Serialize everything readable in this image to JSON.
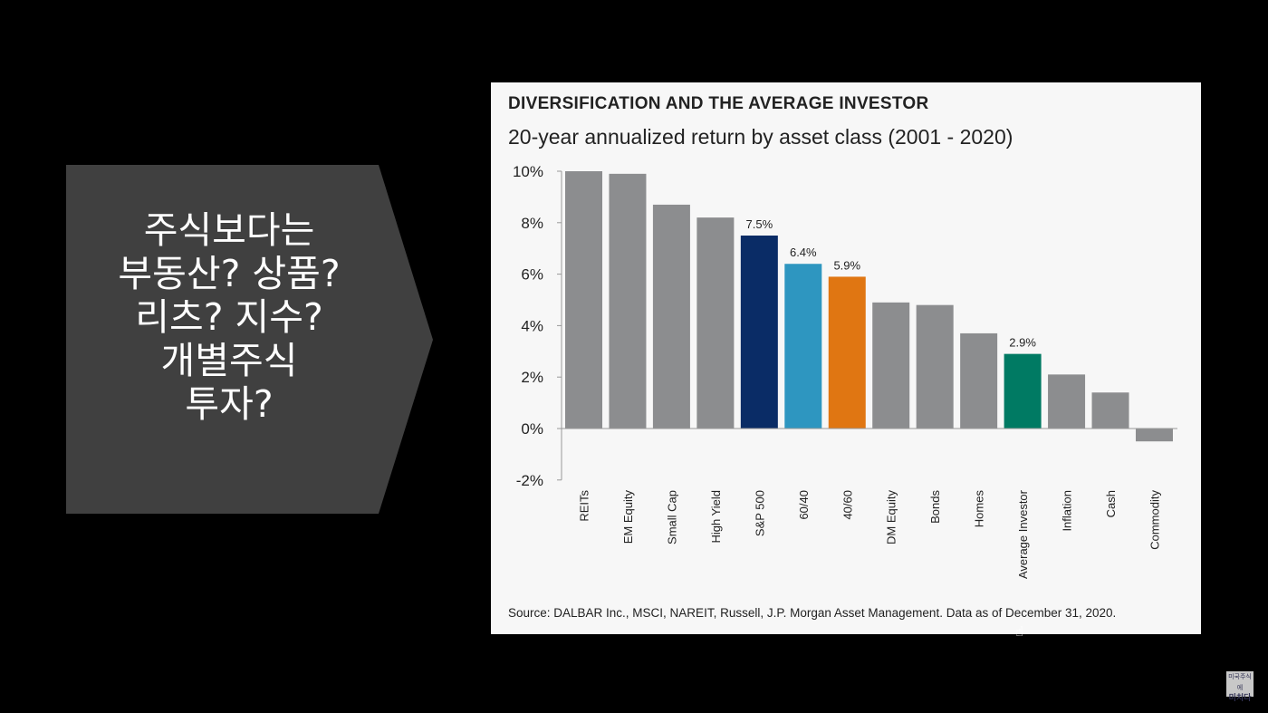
{
  "left_panel": {
    "lines": [
      "주식보다는",
      "부동산? 상품?",
      "리츠? 지수?",
      "개별주식",
      "투자?"
    ]
  },
  "logo": {
    "line1": "미국주식에",
    "line2": "미치다"
  },
  "chart_data": {
    "type": "bar",
    "title": "DIVERSIFICATION AND THE AVERAGE INVESTOR",
    "subtitle": "20-year annualized return by asset class (2001 - 2020)",
    "source": "Source: DALBAR Inc., MSCI, NAREIT, Russell, J.P. Morgan Asset Management. Data as of December 31, 2020.",
    "categories": [
      "REITs",
      "EM Equity",
      "Small Cap",
      "High Yield",
      "S&P 500",
      "60/40",
      "40/60",
      "DM Equity",
      "Bonds",
      "Homes",
      "Average Investor",
      "Inflation",
      "Cash",
      "Commodity"
    ],
    "values": [
      10.0,
      9.9,
      8.7,
      8.2,
      7.5,
      6.4,
      5.9,
      4.9,
      4.8,
      3.7,
      2.9,
      2.1,
      1.4,
      -0.5
    ],
    "colors": [
      "#8c8d8f",
      "#8c8d8f",
      "#8c8d8f",
      "#8c8d8f",
      "#0a2c66",
      "#2e96c0",
      "#e07612",
      "#8c8d8f",
      "#8c8d8f",
      "#8c8d8f",
      "#007a63",
      "#8c8d8f",
      "#8c8d8f",
      "#8c8d8f"
    ],
    "data_labels": {
      "4": "7.5%",
      "5": "6.4%",
      "6": "5.9%",
      "10": "2.9%"
    },
    "yticks": [
      10,
      8,
      6,
      4,
      2,
      0,
      -2
    ],
    "ytick_labels": [
      "10%",
      "8%",
      "6%",
      "4%",
      "2%",
      "0%",
      "-2%"
    ],
    "ylim": [
      -2,
      10
    ],
    "xlabel": "",
    "ylabel": "",
    "grid": false
  }
}
